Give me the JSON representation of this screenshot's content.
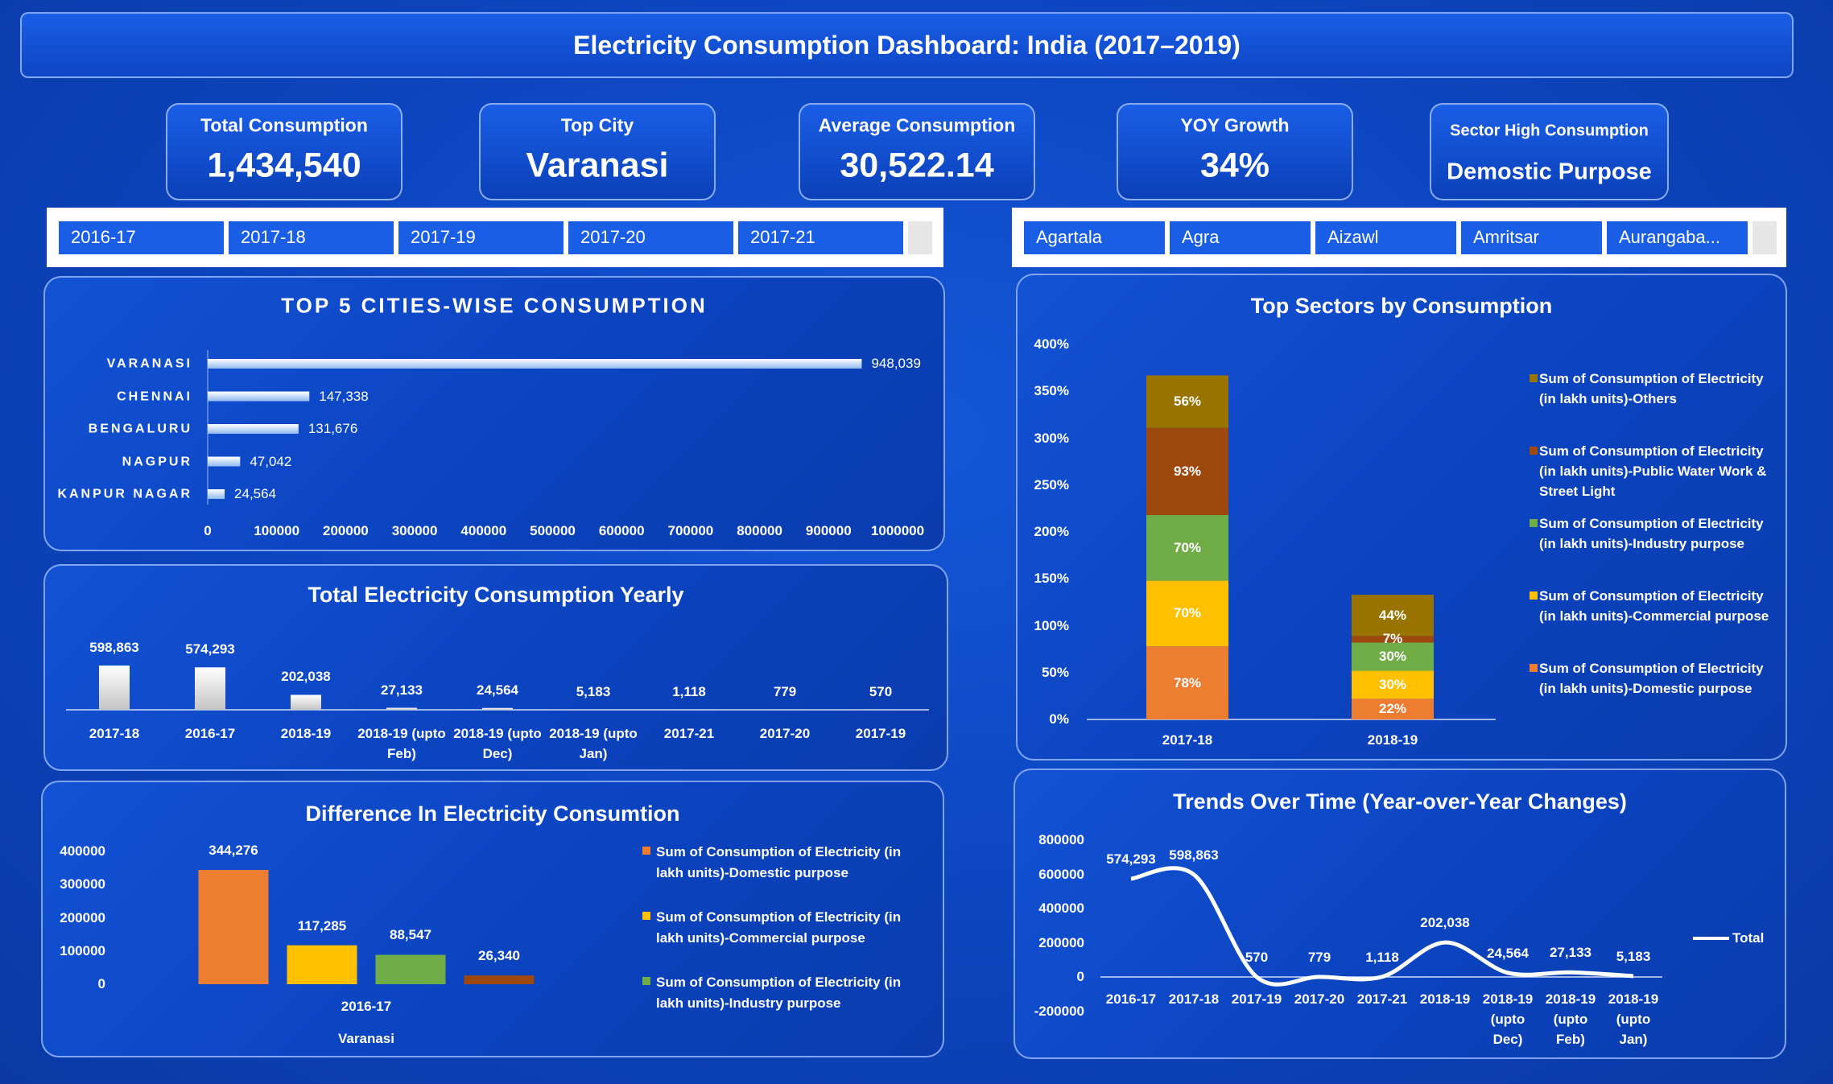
{
  "title": "Electricity Consumption Dashboard: India (2017–2019)",
  "kpis": [
    {
      "label": "Total Consumption",
      "value": "1,434,540"
    },
    {
      "label": "Top City",
      "value": "Varanasi"
    },
    {
      "label": "Average Consumption",
      "value": "30,522.14"
    },
    {
      "label": "YOY Growth",
      "value": "34%"
    },
    {
      "label": "Sector High Consumption",
      "value": "Demostic Purpose"
    }
  ],
  "year_slicer": [
    "2016-17",
    "2017-18",
    "2017-19",
    "2017-20",
    "2017-21"
  ],
  "city_slicer": [
    "Agartala",
    "Agra",
    "Aizawl",
    "Amritsar",
    "Aurangaba..."
  ],
  "chart_data": [
    {
      "type": "bar",
      "orientation": "horizontal",
      "title": "TOP 5 CITIES-WISE CONSUMPTION",
      "categories": [
        "VARANASI",
        "CHENNAI",
        "BENGALURU",
        "NAGPUR",
        "KANPUR NAGAR"
      ],
      "values": [
        948039,
        147338,
        131676,
        47042,
        24564
      ],
      "value_labels": [
        "948,039",
        "147,338",
        "131,676",
        "47,042",
        "24,564"
      ],
      "xlim": [
        0,
        1000000
      ],
      "xticks": [
        0,
        100000,
        200000,
        300000,
        400000,
        500000,
        600000,
        700000,
        800000,
        900000,
        1000000
      ]
    },
    {
      "type": "bar",
      "title": "Total Electricity Consumption Yearly",
      "categories": [
        "2017-18",
        "2016-17",
        "2018-19",
        "2018-19 (upto Feb)",
        "2018-19 (upto Dec)",
        "2018-19 (upto Jan)",
        "2017-21",
        "2017-20",
        "2017-19"
      ],
      "values": [
        598863,
        574293,
        202038,
        27133,
        24564,
        5183,
        1118,
        779,
        570
      ],
      "value_labels": [
        "598,863",
        "574,293",
        "202,038",
        "27,133",
        "24,564",
        "5,183",
        "1,118",
        "779",
        "570"
      ]
    },
    {
      "type": "bar",
      "title": "Difference In Electricity Consumtion",
      "categories": [
        "2016-17"
      ],
      "xlabel": "Varanasi",
      "series": [
        {
          "name": "Sum of Consumption of Electricity (in lakh units)-Domestic purpose",
          "color": "#ed7d31",
          "values": [
            344276
          ],
          "value_labels": [
            "344,276"
          ]
        },
        {
          "name": "Sum of Consumption of Electricity (in lakh units)-Commercial purpose",
          "color": "#ffc000",
          "values": [
            117285
          ],
          "value_labels": [
            "117,285"
          ]
        },
        {
          "name": "Sum of Consumption of Electricity (in lakh units)-Industry purpose",
          "color": "#70ad47",
          "values": [
            88547
          ],
          "value_labels": [
            "88,547"
          ]
        },
        {
          "color": "#9e480e",
          "values": [
            26340
          ],
          "value_labels": [
            "26,340"
          ]
        }
      ],
      "ylim": [
        0,
        400000
      ],
      "yticks": [
        0,
        100000,
        200000,
        300000,
        400000
      ]
    },
    {
      "type": "stacked_bar",
      "title": "Top Sectors by Consumption",
      "categories": [
        "2017-18",
        "2018-19"
      ],
      "series": [
        {
          "name": "Sum of Consumption of Electricity (in lakh units)-Domestic purpose",
          "color": "#ed7d31",
          "values": [
            78,
            22
          ],
          "value_labels": [
            "78%",
            "22%"
          ]
        },
        {
          "name": "Sum of Consumption of Electricity (in lakh units)-Commercial purpose",
          "color": "#ffc000",
          "values": [
            70,
            30
          ],
          "value_labels": [
            "70%",
            "30%"
          ]
        },
        {
          "name": "Sum of Consumption of Electricity (in lakh units)-Industry purpose",
          "color": "#70ad47",
          "values": [
            70,
            30
          ],
          "value_labels": [
            "70%",
            "30%"
          ]
        },
        {
          "name": "Sum of Consumption of Electricity (in lakh units)-Public Water Work & Street Light",
          "color": "#9e480e",
          "values": [
            93,
            7
          ],
          "value_labels": [
            "93%",
            "7%"
          ]
        },
        {
          "name": "Sum of Consumption of Electricity (in lakh units)-Others",
          "color": "#997300",
          "values": [
            56,
            44
          ],
          "value_labels": [
            "56%",
            "44%"
          ]
        }
      ],
      "ylim": [
        0,
        400
      ],
      "yticks": [
        {
          "value": 0,
          "label": "0%"
        },
        {
          "value": 50,
          "label": "50%"
        },
        {
          "value": 100,
          "label": "100%"
        },
        {
          "value": 150,
          "label": "150%"
        },
        {
          "value": 200,
          "label": "200%"
        },
        {
          "value": 250,
          "label": "250%"
        },
        {
          "value": 300,
          "label": "300%"
        },
        {
          "value": 350,
          "label": "350%"
        },
        {
          "value": 400,
          "label": "400%"
        }
      ]
    },
    {
      "type": "line",
      "title": "Trends Over Time (Year-over-Year Changes)",
      "categories": [
        "2016-17",
        "2017-18",
        "2017-19",
        "2017-20",
        "2017-21",
        "2018-19",
        "2018-19 (upto Dec)",
        "2018-19 (upto Feb)",
        "2018-19 (upto Jan)"
      ],
      "series": [
        {
          "name": "Total",
          "color": "#ffffff",
          "values": [
            574293,
            598863,
            570,
            779,
            1118,
            202038,
            24564,
            27133,
            5183
          ],
          "value_labels": [
            "574,293",
            "598,863",
            "570",
            "779",
            "1,118",
            "202,038",
            "24,564",
            "27,133",
            "5,183"
          ]
        }
      ],
      "ylim": [
        -200000,
        800000
      ],
      "yticks": [
        -200000,
        0,
        200000,
        400000,
        600000,
        800000
      ]
    }
  ]
}
